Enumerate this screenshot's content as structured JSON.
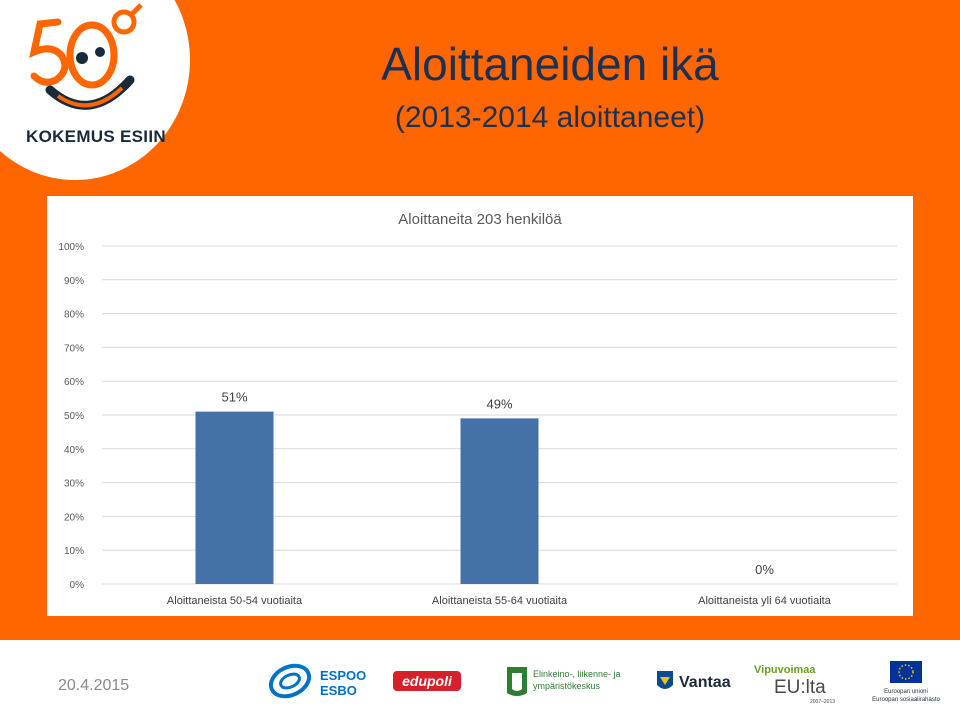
{
  "slide": {
    "title": "Aloittaneiden ikä",
    "subtitle": "(2013-2014 aloittaneet)",
    "date": "20.4.2015",
    "background_color": "#ff6600"
  },
  "logo": {
    "text": "KOKEMUS ESIIN",
    "icon": "50-smiley-logo"
  },
  "footer_logos": [
    {
      "name": "espoo-logo",
      "text_line1": "ESPOO",
      "text_line2": "ESBO"
    },
    {
      "name": "edupoli-logo",
      "text": "edupoli"
    },
    {
      "name": "ely-keskus-logo",
      "text_line1": "Elinkeino-, liikenne- ja",
      "text_line2": "ympäristökeskus"
    },
    {
      "name": "vantaa-logo",
      "text": "Vantaa"
    },
    {
      "name": "vipuvoimaa-logo",
      "text_line1": "Vipuvoimaa",
      "text_line2": "EU:lta",
      "text_line3": "2007–2013"
    },
    {
      "name": "eu-flag-logo",
      "text_line1": "Euroopan unioni",
      "text_line2": "Euroopan sosiaalirahasto"
    }
  ],
  "chart_data": {
    "type": "bar",
    "title": "Aloittaneita 203 henkilöä",
    "categories": [
      "Aloittaneista 50-54 vuotiaita",
      "Aloittaneista 55-64 vuotiaita",
      "Aloittaneista yli 64 vuotiaita"
    ],
    "values": [
      51,
      49,
      0
    ],
    "value_labels": [
      "51%",
      "49%",
      "0%"
    ],
    "ylim": [
      0,
      100
    ],
    "y_ticks": [
      "0%",
      "10%",
      "20%",
      "30%",
      "40%",
      "50%",
      "60%",
      "70%",
      "80%",
      "90%",
      "100%"
    ],
    "grid": true,
    "bar_color": "#4472a8"
  }
}
